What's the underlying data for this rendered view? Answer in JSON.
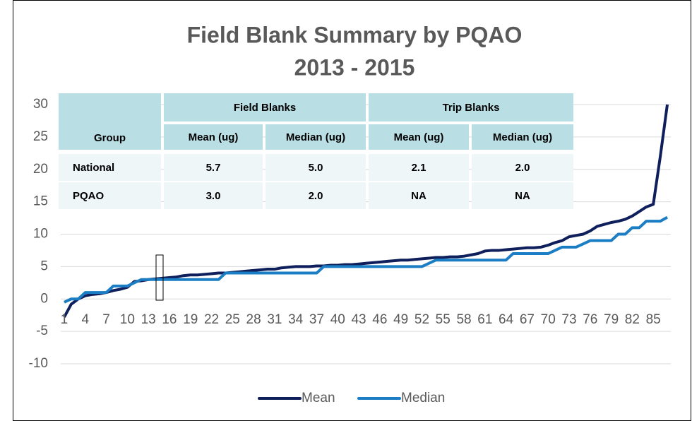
{
  "chart_data": {
    "type": "line",
    "title": "Field Blank Summary by PQAO",
    "subtitle": "2013 - 2015",
    "categories": [
      1,
      null,
      null,
      4,
      null,
      null,
      7,
      null,
      null,
      10,
      null,
      null,
      13,
      null,
      null,
      16,
      null,
      null,
      19,
      null,
      null,
      22,
      null,
      null,
      25,
      null,
      null,
      28,
      null,
      null,
      31,
      null,
      null,
      34,
      null,
      null,
      37,
      null,
      null,
      40,
      null,
      null,
      43,
      null,
      null,
      46,
      null,
      null,
      49,
      null,
      null,
      52,
      null,
      null,
      55,
      null,
      null,
      58,
      null,
      null,
      61,
      null,
      null,
      64,
      null,
      null,
      67,
      null,
      null,
      70,
      null,
      null,
      73,
      null,
      null,
      76,
      null,
      null,
      79,
      null,
      null,
      82,
      null,
      null,
      85,
      null,
      null
    ],
    "series": [
      {
        "name": "Mean",
        "color": "#0e1f5b",
        "values": [
          -2.8,
          -0.8,
          0,
          0.5,
          0.7,
          0.8,
          1,
          1.3,
          1.5,
          1.8,
          2.7,
          2.8,
          3.0,
          3.1,
          3.2,
          3.3,
          3.4,
          3.6,
          3.7,
          3.7,
          3.8,
          3.9,
          4.0,
          4.0,
          4.1,
          4.2,
          4.3,
          4.4,
          4.5,
          4.6,
          4.6,
          4.8,
          4.9,
          5.0,
          5.0,
          5.0,
          5.1,
          5.1,
          5.2,
          5.2,
          5.3,
          5.3,
          5.4,
          5.5,
          5.6,
          5.7,
          5.8,
          5.9,
          6.0,
          6.0,
          6.1,
          6.2,
          6.3,
          6.4,
          6.4,
          6.5,
          6.5,
          6.6,
          6.8,
          7.0,
          7.4,
          7.5,
          7.5,
          7.6,
          7.7,
          7.8,
          7.9,
          7.9,
          8.0,
          8.3,
          8.7,
          9.0,
          9.6,
          9.8,
          10.0,
          10.5,
          11.2,
          11.5,
          11.8,
          12.0,
          12.3,
          12.8,
          13.5,
          14.2,
          14.6,
          22,
          30
        ]
      },
      {
        "name": "Median",
        "color": "#1b7dc3",
        "values": [
          -0.5,
          0,
          0,
          1,
          1,
          1,
          1,
          2,
          2,
          2,
          2.5,
          3,
          3,
          3,
          3,
          3,
          3,
          3,
          3,
          3,
          3,
          3,
          3,
          4,
          4,
          4,
          4,
          4,
          4,
          4,
          4,
          4,
          4,
          4,
          4,
          4,
          4,
          5,
          5,
          5,
          5,
          5,
          5,
          5,
          5,
          5,
          5,
          5,
          5,
          5,
          5,
          5,
          5.5,
          6,
          6,
          6,
          6,
          6,
          6,
          6,
          6,
          6,
          6,
          6,
          7,
          7,
          7,
          7,
          7,
          7,
          7.5,
          8,
          8,
          8,
          8.5,
          9,
          9,
          9,
          9,
          10,
          10,
          11,
          11,
          12,
          12,
          12,
          12.6
        ]
      }
    ],
    "ylim": [
      -10,
      30
    ],
    "yticks": [
      -10,
      -5,
      0,
      5,
      10,
      15,
      20,
      25,
      30
    ],
    "grid": true
  },
  "table": {
    "group_header": "Group",
    "groups": [
      "Field Blanks",
      "Trip Blanks"
    ],
    "columns": [
      "Mean (ug)",
      "Median (ug)",
      "Mean (ug)",
      "Median (ug)"
    ],
    "rows": [
      [
        "National",
        "5.7",
        "5.0",
        "2.1",
        "2.0"
      ],
      [
        "PQAO",
        "3.0",
        "2.0",
        "NA",
        "NA"
      ]
    ]
  }
}
